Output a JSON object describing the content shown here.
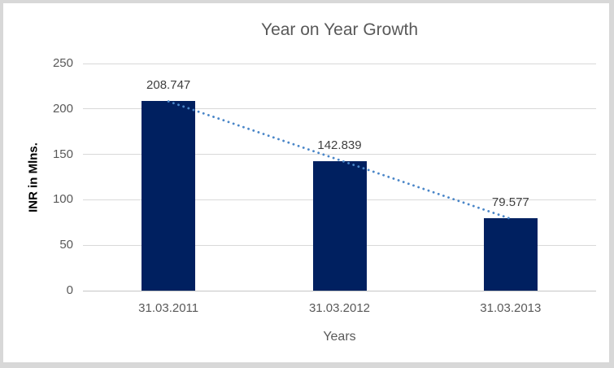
{
  "chart_data": {
    "type": "bar",
    "title": "Year on Year Growth",
    "xlabel": "Years",
    "ylabel": "INR in Mlns.",
    "categories": [
      "31.03.2011",
      "31.03.2012",
      "31.03.2013"
    ],
    "values": [
      208.747,
      142.839,
      79.577
    ],
    "data_labels": [
      "208.747",
      "142.839",
      "79.577"
    ],
    "yticks": [
      0,
      50,
      100,
      150,
      200,
      250
    ],
    "ylim": [
      0,
      250
    ],
    "grid": true,
    "legend": "none",
    "trendline": {
      "type": "linear",
      "style": "dotted"
    },
    "colors": {
      "bar": "#002060",
      "trendline": "#4a86c8",
      "title": "#595959",
      "tick_label": "#595959",
      "data_label": "#3f3f3f",
      "gridline": "#d9d9d9",
      "axis_line": "#c6c6c6",
      "frame_border": "#d8d8d8",
      "ylabel": "#000000"
    }
  }
}
